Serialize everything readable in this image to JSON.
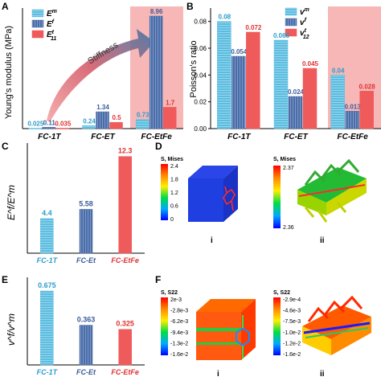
{
  "panels": {
    "A": {
      "letter": "A"
    },
    "B": {
      "letter": "B"
    },
    "C": {
      "letter": "C"
    },
    "D": {
      "letter": "D"
    },
    "E": {
      "letter": "E"
    },
    "F": {
      "letter": "F"
    }
  },
  "chart_data": [
    {
      "panel": "A",
      "type": "bar",
      "ylabel": "Young's modulus (MPa)",
      "ylim": [
        0,
        9.6
      ],
      "categories": [
        "FC-1T",
        "FC-ET",
        "FC-EtFe"
      ],
      "series": [
        {
          "name": "E^m",
          "values": [
            0.025,
            0.24,
            0.73
          ],
          "labels": [
            "0.025",
            "0.24",
            "0.73"
          ],
          "color": "#5bbde0"
        },
        {
          "name": "E^f",
          "values": [
            0.11,
            1.34,
            8.96
          ],
          "labels": [
            "0.11",
            "1.34",
            "8.96"
          ],
          "color": "#4a6da8"
        },
        {
          "name": "E^t_11",
          "values": [
            0.035,
            0.5,
            1.7
          ],
          "labels": [
            "0.035",
            "0.5",
            "1.7"
          ],
          "color": "#ef5a5a"
        }
      ],
      "legend": [
        "E^m",
        "E^f",
        "E^t_11"
      ],
      "annotation": "Stiffness",
      "highlight": "FC-EtFe",
      "highlight_color": "#f7b7b7"
    },
    {
      "panel": "B",
      "type": "bar",
      "ylabel": "Poisson's ratio",
      "ylim": [
        0,
        0.09
      ],
      "yticks": [
        "0.00",
        "0.02",
        "0.04",
        "0.06",
        "0.08"
      ],
      "ytick_values": [
        0,
        0.02,
        0.04,
        0.06,
        0.08
      ],
      "categories": [
        "FC-1T",
        "FC-ET",
        "FC-EtFe"
      ],
      "series": [
        {
          "name": "v^m",
          "values": [
            0.08,
            0.066,
            0.04
          ],
          "labels": [
            "0.08",
            "0.066",
            "0.04"
          ],
          "color": "#5bbde0"
        },
        {
          "name": "v^f",
          "values": [
            0.054,
            0.024,
            0.013
          ],
          "labels": [
            "0.054",
            "0.024",
            "0.013"
          ],
          "color": "#4a6da8"
        },
        {
          "name": "v^t_12",
          "values": [
            0.072,
            0.045,
            0.028
          ],
          "labels": [
            "0.072",
            "0.045",
            "0.028"
          ],
          "color": "#ef5a5a"
        }
      ],
      "legend": [
        "v^m",
        "v^f",
        "v^t_12"
      ],
      "highlight": "FC-EtFe",
      "highlight_color": "#f7b7b7"
    },
    {
      "panel": "C",
      "type": "bar",
      "ylabel": "E^f/E^m",
      "ylim": [
        0,
        14
      ],
      "categories": [
        "FC-1T",
        "FC-Et",
        "FC-EtFe"
      ],
      "values": [
        4.4,
        5.58,
        12.3
      ],
      "labels": [
        "4.4",
        "5.58",
        "12.3"
      ],
      "colors": [
        "#5bbde0",
        "#4a6da8",
        "#ef5a5a"
      ]
    },
    {
      "panel": "E",
      "type": "bar",
      "ylabel": "v^f/v^m",
      "ylim": [
        0,
        0.8
      ],
      "categories": [
        "FC-1T",
        "FC-Et",
        "FC-EtFe"
      ],
      "values": [
        0.675,
        0.363,
        0.325
      ],
      "labels": [
        "0.675",
        "0.363",
        "0.325"
      ],
      "colors": [
        "#5bbde0",
        "#4a6da8",
        "#ef5a5a"
      ]
    }
  ],
  "contours": {
    "D": {
      "left": {
        "title": "S, Mises",
        "ticks": [
          "2.4",
          "1.8",
          "1.2",
          "0.6",
          "0"
        ],
        "caption": "i"
      },
      "right": {
        "title": "S, Mises",
        "ticks": [
          "2.37",
          "2.36"
        ],
        "caption": "ii"
      }
    },
    "F": {
      "left": {
        "title": "S, S22",
        "ticks": [
          "2e-3",
          "-2.8e-3",
          "-6.2e-3",
          "-9.4e-3",
          "-1.3e-2",
          "-1.6e-2"
        ],
        "caption": "i"
      },
      "right": {
        "title": "S, S22",
        "ticks": [
          "-2.9e-4",
          "-4.6e-3",
          "-7.5e-3",
          "-1.0e-2",
          "-1.2e-2",
          "-1.6e-2"
        ],
        "caption": "ii"
      }
    }
  }
}
